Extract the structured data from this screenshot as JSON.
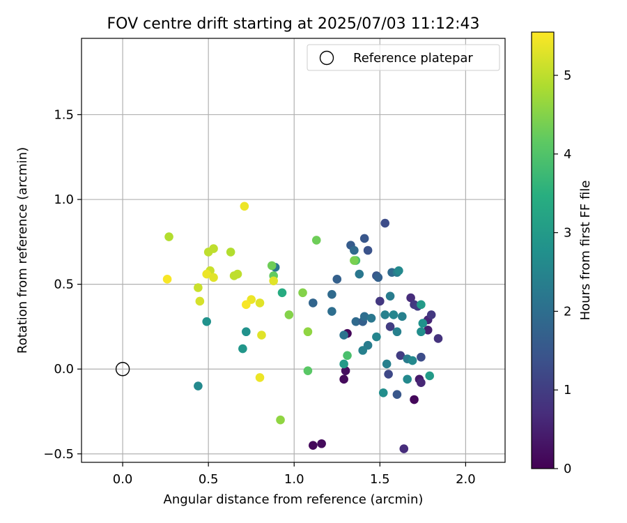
{
  "chart_data": {
    "type": "scatter",
    "title": "FOV centre drift starting at 2025/07/03 11:12:43",
    "xlabel": "Angular distance from reference (arcmin)",
    "ylabel": "Rotation from reference (arcmin)",
    "xlim": [
      -0.24,
      2.23
    ],
    "ylim": [
      -0.55,
      1.95
    ],
    "xticks": [
      0.0,
      0.5,
      1.0,
      1.5,
      2.0
    ],
    "xtick_labels": [
      "0.0",
      "0.5",
      "1.0",
      "1.5",
      "2.0"
    ],
    "yticks": [
      -0.5,
      0.0,
      0.5,
      1.0,
      1.5
    ],
    "ytick_labels": [
      "−0.5",
      "0.0",
      "0.5",
      "1.0",
      "1.5"
    ],
    "grid": true,
    "legend": {
      "position": "top-right",
      "entries": [
        "Reference platepar"
      ]
    },
    "reference_point": {
      "x": 0.0,
      "y": 0.0
    },
    "colorbar": {
      "label": "Hours from first FF file",
      "colormap": "viridis",
      "range": [
        0,
        5.55
      ],
      "ticks": [
        0,
        1,
        2,
        3,
        4,
        5
      ],
      "tick_labels": [
        "0",
        "1",
        "2",
        "3",
        "4",
        "5"
      ]
    },
    "points": [
      {
        "x": 1.31,
        "y": 0.21,
        "c": 0.1
      },
      {
        "x": 1.29,
        "y": -0.06,
        "c": 0.15
      },
      {
        "x": 1.3,
        "y": -0.01,
        "c": 0.2
      },
      {
        "x": 1.11,
        "y": -0.45,
        "c": 0.1
      },
      {
        "x": 1.16,
        "y": -0.44,
        "c": 0.15
      },
      {
        "x": 1.7,
        "y": -0.18,
        "c": 0.1
      },
      {
        "x": 1.73,
        "y": -0.06,
        "c": 0.4
      },
      {
        "x": 1.74,
        "y": -0.08,
        "c": 0.6
      },
      {
        "x": 1.64,
        "y": -0.47,
        "c": 0.7
      },
      {
        "x": 1.84,
        "y": 0.18,
        "c": 0.8
      },
      {
        "x": 1.78,
        "y": 0.23,
        "c": 0.5
      },
      {
        "x": 1.78,
        "y": 0.29,
        "c": 0.6
      },
      {
        "x": 1.8,
        "y": 0.32,
        "c": 0.9
      },
      {
        "x": 1.68,
        "y": 0.42,
        "c": 0.7
      },
      {
        "x": 1.7,
        "y": 0.38,
        "c": 0.9
      },
      {
        "x": 1.72,
        "y": 0.37,
        "c": 1.0
      },
      {
        "x": 1.5,
        "y": 0.4,
        "c": 0.9
      },
      {
        "x": 1.56,
        "y": 0.25,
        "c": 1.0
      },
      {
        "x": 1.62,
        "y": 0.08,
        "c": 1.0
      },
      {
        "x": 1.74,
        "y": 0.07,
        "c": 1.3
      },
      {
        "x": 1.55,
        "y": -0.03,
        "c": 1.2
      },
      {
        "x": 1.6,
        "y": -0.15,
        "c": 1.5
      },
      {
        "x": 1.53,
        "y": 0.86,
        "c": 1.3
      },
      {
        "x": 1.41,
        "y": 0.77,
        "c": 1.5
      },
      {
        "x": 1.43,
        "y": 0.7,
        "c": 1.4
      },
      {
        "x": 1.33,
        "y": 0.73,
        "c": 1.6
      },
      {
        "x": 1.35,
        "y": 0.7,
        "c": 1.9
      },
      {
        "x": 1.48,
        "y": 0.55,
        "c": 1.5
      },
      {
        "x": 1.49,
        "y": 0.54,
        "c": 1.7
      },
      {
        "x": 1.57,
        "y": 0.57,
        "c": 1.9
      },
      {
        "x": 1.6,
        "y": 0.57,
        "c": 2.3
      },
      {
        "x": 1.61,
        "y": 0.58,
        "c": 2.6
      },
      {
        "x": 1.25,
        "y": 0.53,
        "c": 1.7
      },
      {
        "x": 1.22,
        "y": 0.44,
        "c": 1.9
      },
      {
        "x": 1.11,
        "y": 0.39,
        "c": 1.8
      },
      {
        "x": 1.22,
        "y": 0.34,
        "c": 2.0
      },
      {
        "x": 1.36,
        "y": 0.28,
        "c": 1.9
      },
      {
        "x": 1.4,
        "y": 0.28,
        "c": 1.7
      },
      {
        "x": 1.41,
        "y": 0.31,
        "c": 2.0
      },
      {
        "x": 1.45,
        "y": 0.3,
        "c": 2.2
      },
      {
        "x": 1.29,
        "y": 0.2,
        "c": 2.1
      },
      {
        "x": 1.38,
        "y": 0.56,
        "c": 2.2
      },
      {
        "x": 1.53,
        "y": 0.32,
        "c": 2.4
      },
      {
        "x": 1.56,
        "y": 0.43,
        "c": 2.3
      },
      {
        "x": 1.58,
        "y": 0.32,
        "c": 2.5
      },
      {
        "x": 1.63,
        "y": 0.31,
        "c": 2.4
      },
      {
        "x": 1.6,
        "y": 0.22,
        "c": 2.4
      },
      {
        "x": 1.48,
        "y": 0.19,
        "c": 2.5
      },
      {
        "x": 1.43,
        "y": 0.14,
        "c": 2.3
      },
      {
        "x": 1.4,
        "y": 0.11,
        "c": 2.4
      },
      {
        "x": 1.54,
        "y": 0.03,
        "c": 2.4
      },
      {
        "x": 1.66,
        "y": 0.06,
        "c": 2.3
      },
      {
        "x": 1.69,
        "y": 0.05,
        "c": 2.6
      },
      {
        "x": 1.66,
        "y": -0.06,
        "c": 2.6
      },
      {
        "x": 1.52,
        "y": -0.14,
        "c": 2.7
      },
      {
        "x": 1.74,
        "y": 0.22,
        "c": 2.7
      },
      {
        "x": 1.75,
        "y": 0.27,
        "c": 2.8
      },
      {
        "x": 1.74,
        "y": 0.38,
        "c": 3.0
      },
      {
        "x": 1.79,
        "y": -0.04,
        "c": 3.0
      },
      {
        "x": 1.29,
        "y": 0.03,
        "c": 3.0
      },
      {
        "x": 0.89,
        "y": 0.6,
        "c": 2.2
      },
      {
        "x": 0.44,
        "y": -0.1,
        "c": 2.6
      },
      {
        "x": 0.49,
        "y": 0.28,
        "c": 2.8
      },
      {
        "x": 0.72,
        "y": 0.22,
        "c": 2.8
      },
      {
        "x": 0.7,
        "y": 0.12,
        "c": 2.9
      },
      {
        "x": 0.93,
        "y": 0.45,
        "c": 3.4
      },
      {
        "x": 1.31,
        "y": 0.08,
        "c": 3.9
      },
      {
        "x": 1.36,
        "y": 0.64,
        "c": 3.9
      },
      {
        "x": 1.35,
        "y": 0.64,
        "c": 4.4
      },
      {
        "x": 0.88,
        "y": 0.55,
        "c": 4.2
      },
      {
        "x": 0.87,
        "y": 0.61,
        "c": 4.3
      },
      {
        "x": 1.13,
        "y": 0.76,
        "c": 4.3
      },
      {
        "x": 1.05,
        "y": 0.45,
        "c": 4.5
      },
      {
        "x": 0.97,
        "y": 0.32,
        "c": 4.5
      },
      {
        "x": 1.08,
        "y": 0.22,
        "c": 4.6
      },
      {
        "x": 1.08,
        "y": -0.01,
        "c": 4.1
      },
      {
        "x": 0.92,
        "y": -0.3,
        "c": 4.6
      },
      {
        "x": 0.27,
        "y": 0.78,
        "c": 4.9
      },
      {
        "x": 0.63,
        "y": 0.69,
        "c": 4.9
      },
      {
        "x": 0.5,
        "y": 0.69,
        "c": 5.0
      },
      {
        "x": 0.53,
        "y": 0.71,
        "c": 5.0
      },
      {
        "x": 0.65,
        "y": 0.55,
        "c": 5.0
      },
      {
        "x": 0.67,
        "y": 0.56,
        "c": 5.0
      },
      {
        "x": 0.51,
        "y": 0.58,
        "c": 5.1
      },
      {
        "x": 0.44,
        "y": 0.48,
        "c": 5.1
      },
      {
        "x": 0.45,
        "y": 0.4,
        "c": 5.2
      },
      {
        "x": 0.49,
        "y": 0.56,
        "c": 5.4
      },
      {
        "x": 0.53,
        "y": 0.54,
        "c": 5.3
      },
      {
        "x": 0.26,
        "y": 0.53,
        "c": 5.5
      },
      {
        "x": 0.71,
        "y": 0.96,
        "c": 5.4
      },
      {
        "x": 0.75,
        "y": 0.41,
        "c": 5.4
      },
      {
        "x": 0.72,
        "y": 0.38,
        "c": 5.5
      },
      {
        "x": 0.8,
        "y": 0.39,
        "c": 5.3
      },
      {
        "x": 0.88,
        "y": 0.52,
        "c": 5.3
      },
      {
        "x": 0.81,
        "y": 0.2,
        "c": 5.3
      },
      {
        "x": 0.8,
        "y": -0.05,
        "c": 5.4
      }
    ]
  }
}
